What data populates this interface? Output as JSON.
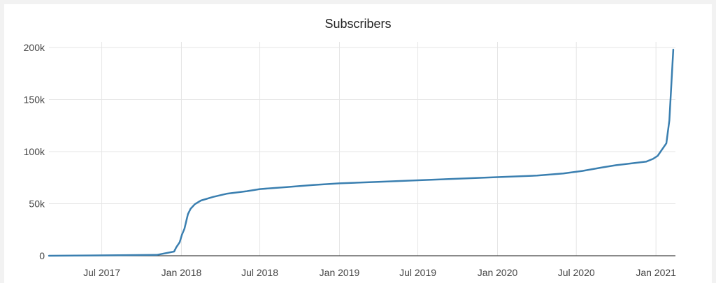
{
  "chart_data": {
    "type": "line",
    "title": "Subscribers",
    "xlabel": "",
    "ylabel": "",
    "x_ticks": [
      "2017-07-01",
      "2018-01-01",
      "2018-07-01",
      "2019-01-01",
      "2019-07-01",
      "2020-01-01",
      "2020-07-01",
      "2021-01-01"
    ],
    "x_tick_labels": [
      "Jul 2017",
      "Jan 2018",
      "Jul 2018",
      "Jan 2019",
      "Jul 2019",
      "Jan 2020",
      "Jul 2020",
      "Jan 2021"
    ],
    "y_ticks": [
      0,
      50000,
      100000,
      150000,
      200000
    ],
    "y_tick_labels": [
      "0",
      "50k",
      "100k",
      "150k",
      "200k"
    ],
    "xlim": [
      "2017-03-01",
      "2021-02-15"
    ],
    "ylim": [
      0,
      200000
    ],
    "grid": true,
    "color": "#3a7fb0",
    "series": [
      {
        "points": [
          [
            "2017-03-01",
            0
          ],
          [
            "2017-06-01",
            300
          ],
          [
            "2017-09-01",
            600
          ],
          [
            "2017-11-05",
            800
          ],
          [
            "2017-12-15",
            4000
          ],
          [
            "2017-12-20",
            8000
          ],
          [
            "2017-12-28",
            13000
          ],
          [
            "2018-01-02",
            20000
          ],
          [
            "2018-01-08",
            26000
          ],
          [
            "2018-01-12",
            33000
          ],
          [
            "2018-01-16",
            40000
          ],
          [
            "2018-01-22",
            45000
          ],
          [
            "2018-02-01",
            49500
          ],
          [
            "2018-02-15",
            53000
          ],
          [
            "2018-03-15",
            56500
          ],
          [
            "2018-04-15",
            59500
          ],
          [
            "2018-06-01",
            62000
          ],
          [
            "2018-07-01",
            64000
          ],
          [
            "2018-09-01",
            66000
          ],
          [
            "2018-11-01",
            68000
          ],
          [
            "2019-01-01",
            69500
          ],
          [
            "2019-04-01",
            71000
          ],
          [
            "2019-07-01",
            72500
          ],
          [
            "2019-10-01",
            74000
          ],
          [
            "2020-01-01",
            75500
          ],
          [
            "2020-04-01",
            77000
          ],
          [
            "2020-06-01",
            79000
          ],
          [
            "2020-07-15",
            81500
          ],
          [
            "2020-09-01",
            85000
          ],
          [
            "2020-10-01",
            87000
          ],
          [
            "2020-11-01",
            88500
          ],
          [
            "2020-12-10",
            90500
          ],
          [
            "2020-12-25",
            93000
          ],
          [
            "2021-01-05",
            96000
          ],
          [
            "2021-01-25",
            108000
          ],
          [
            "2021-02-01",
            130000
          ],
          [
            "2021-02-07",
            175000
          ],
          [
            "2021-02-10",
            198000
          ]
        ]
      }
    ]
  }
}
